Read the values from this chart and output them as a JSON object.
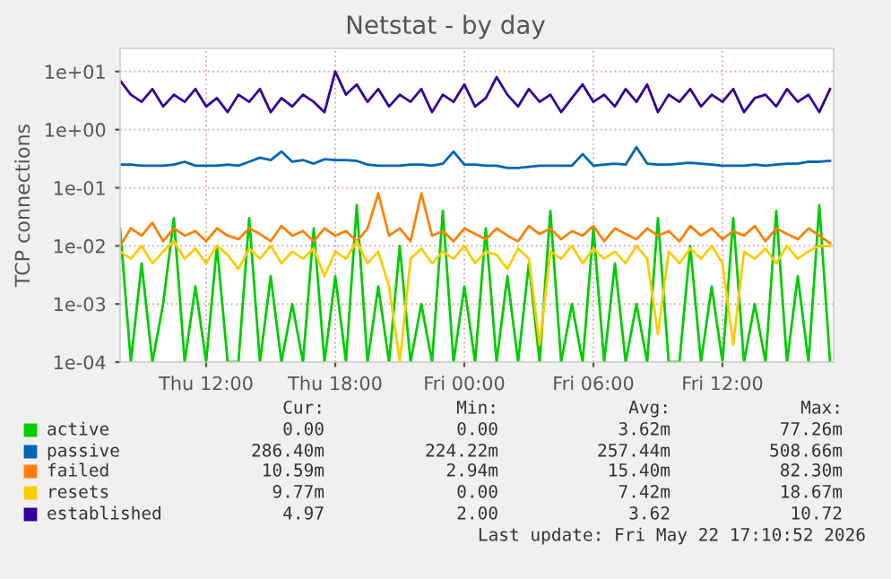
{
  "chart_data": {
    "type": "line",
    "title": "Netstat - by day",
    "ylabel": "TCP connections",
    "x": [
      "2026-05-21T08:00",
      "2026-05-21T08:30",
      "2026-05-21T09:00",
      "2026-05-21T09:30",
      "2026-05-21T10:00",
      "2026-05-21T10:30",
      "2026-05-21T11:00",
      "2026-05-21T11:30",
      "2026-05-21T12:00",
      "2026-05-21T12:30",
      "2026-05-21T13:00",
      "2026-05-21T13:30",
      "2026-05-21T14:00",
      "2026-05-21T14:30",
      "2026-05-21T15:00",
      "2026-05-21T15:30",
      "2026-05-21T16:00",
      "2026-05-21T16:30",
      "2026-05-21T17:00",
      "2026-05-21T17:30",
      "2026-05-21T18:00",
      "2026-05-21T18:30",
      "2026-05-21T19:00",
      "2026-05-21T19:30",
      "2026-05-21T20:00",
      "2026-05-21T20:30",
      "2026-05-21T21:00",
      "2026-05-21T21:30",
      "2026-05-21T22:00",
      "2026-05-21T22:30",
      "2026-05-21T23:00",
      "2026-05-21T23:30",
      "2026-05-22T00:00",
      "2026-05-22T00:30",
      "2026-05-22T01:00",
      "2026-05-22T01:30",
      "2026-05-22T02:00",
      "2026-05-22T02:30",
      "2026-05-22T03:00",
      "2026-05-22T03:30",
      "2026-05-22T04:00",
      "2026-05-22T04:30",
      "2026-05-22T05:00",
      "2026-05-22T05:30",
      "2026-05-22T06:00",
      "2026-05-22T06:30",
      "2026-05-22T07:00",
      "2026-05-22T07:30",
      "2026-05-22T08:00",
      "2026-05-22T08:30",
      "2026-05-22T09:00",
      "2026-05-22T09:30",
      "2026-05-22T10:00",
      "2026-05-22T10:30",
      "2026-05-22T11:00",
      "2026-05-22T11:30",
      "2026-05-22T12:00",
      "2026-05-22T12:30",
      "2026-05-22T13:00",
      "2026-05-22T13:30",
      "2026-05-22T14:00",
      "2026-05-22T14:30",
      "2026-05-22T15:00",
      "2026-05-22T15:30",
      "2026-05-22T16:00",
      "2026-05-22T16:30",
      "2026-05-22T17:00"
    ],
    "xlim": [
      "2026-05-21T08:00",
      "2026-05-22T17:10"
    ],
    "xticks": [
      {
        "value": "2026-05-21T12:00",
        "label": "Thu 12:00"
      },
      {
        "value": "2026-05-21T18:00",
        "label": "Thu 18:00"
      },
      {
        "value": "2026-05-22T00:00",
        "label": "Fri 00:00"
      },
      {
        "value": "2026-05-22T06:00",
        "label": "Fri 06:00"
      },
      {
        "value": "2026-05-22T12:00",
        "label": "Fri 12:00"
      }
    ],
    "log": "y",
    "ylim": [
      0.0001,
      25
    ],
    "yticks": [
      {
        "value": 0.0001,
        "label": "1e-04"
      },
      {
        "value": 0.001,
        "label": "1e-03"
      },
      {
        "value": 0.01,
        "label": "1e-02"
      },
      {
        "value": 0.1,
        "label": "1e-01"
      },
      {
        "value": 1,
        "label": "1e+00"
      },
      {
        "value": 10,
        "label": "1e+01"
      }
    ],
    "grid": true,
    "legend": "bottom",
    "series": [
      {
        "name": "active",
        "color": "#00cc00",
        "values": [
          0.02,
          0.0001,
          0.005,
          0.0001,
          0.001,
          0.03,
          0.0001,
          0.002,
          0.0001,
          0.01,
          0.0001,
          0.0001,
          0.03,
          0.0001,
          0.003,
          0.0001,
          0.001,
          0.0001,
          0.02,
          0.0001,
          0.003,
          0.0001,
          0.05,
          0.0001,
          0.002,
          0.0001,
          0.01,
          0.0001,
          0.001,
          0.0001,
          0.04,
          0.0001,
          0.002,
          0.0001,
          0.02,
          0.0001,
          0.003,
          0.0001,
          0.005,
          0.0001,
          0.04,
          0.0001,
          0.001,
          0.0001,
          0.02,
          0.0001,
          0.005,
          0.0001,
          0.001,
          0.0001,
          0.03,
          0.0001,
          0.0001,
          0.01,
          0.0001,
          0.002,
          0.0001,
          0.03,
          0.0001,
          0.001,
          0.0001,
          0.04,
          0.0001,
          0.003,
          0.0001,
          0.05,
          0.0001
        ]
      },
      {
        "name": "passive",
        "color": "#0066b3",
        "values": [
          0.25,
          0.25,
          0.24,
          0.24,
          0.24,
          0.25,
          0.28,
          0.24,
          0.24,
          0.24,
          0.25,
          0.24,
          0.28,
          0.33,
          0.3,
          0.42,
          0.28,
          0.3,
          0.26,
          0.31,
          0.3,
          0.3,
          0.29,
          0.25,
          0.24,
          0.24,
          0.24,
          0.25,
          0.25,
          0.24,
          0.26,
          0.42,
          0.25,
          0.25,
          0.24,
          0.24,
          0.22,
          0.22,
          0.23,
          0.24,
          0.24,
          0.24,
          0.24,
          0.38,
          0.24,
          0.25,
          0.26,
          0.25,
          0.5,
          0.26,
          0.25,
          0.25,
          0.26,
          0.27,
          0.26,
          0.25,
          0.24,
          0.24,
          0.24,
          0.25,
          0.24,
          0.25,
          0.26,
          0.26,
          0.28,
          0.28,
          0.29
        ]
      },
      {
        "name": "failed",
        "color": "#ff8000",
        "values": [
          0.01,
          0.02,
          0.015,
          0.025,
          0.012,
          0.02,
          0.015,
          0.018,
          0.012,
          0.02,
          0.015,
          0.013,
          0.02,
          0.016,
          0.012,
          0.022,
          0.015,
          0.018,
          0.012,
          0.02,
          0.015,
          0.018,
          0.012,
          0.02,
          0.08,
          0.015,
          0.02,
          0.012,
          0.08,
          0.015,
          0.018,
          0.012,
          0.02,
          0.016,
          0.013,
          0.02,
          0.015,
          0.012,
          0.022,
          0.016,
          0.02,
          0.013,
          0.018,
          0.015,
          0.022,
          0.012,
          0.02,
          0.016,
          0.013,
          0.02,
          0.015,
          0.018,
          0.012,
          0.022,
          0.015,
          0.02,
          0.013,
          0.018,
          0.015,
          0.022,
          0.012,
          0.02,
          0.016,
          0.013,
          0.02,
          0.015,
          0.011
        ]
      },
      {
        "name": "resets",
        "color": "#ffcc00",
        "values": [
          0.008,
          0.006,
          0.01,
          0.005,
          0.008,
          0.012,
          0.006,
          0.009,
          0.005,
          0.01,
          0.007,
          0.004,
          0.009,
          0.006,
          0.01,
          0.005,
          0.008,
          0.006,
          0.009,
          0.003,
          0.008,
          0.006,
          0.012,
          0.005,
          0.008,
          0.002,
          0.0001,
          0.006,
          0.009,
          0.005,
          0.008,
          0.006,
          0.01,
          0.005,
          0.008,
          0.007,
          0.004,
          0.009,
          0.006,
          0.0002,
          0.008,
          0.006,
          0.01,
          0.005,
          0.009,
          0.006,
          0.008,
          0.005,
          0.01,
          0.006,
          0.0003,
          0.008,
          0.005,
          0.009,
          0.006,
          0.01,
          0.005,
          0.0002,
          0.008,
          0.006,
          0.009,
          0.005,
          0.01,
          0.006,
          0.008,
          0.01,
          0.0098
        ]
      },
      {
        "name": "established",
        "color": "#330099",
        "values": [
          7,
          4,
          3,
          5,
          2.5,
          4,
          3,
          5,
          2.5,
          3.5,
          2,
          4,
          3,
          5,
          2,
          3.5,
          2.5,
          4,
          3,
          2,
          10,
          4,
          6,
          3,
          5,
          2.5,
          4,
          3,
          5,
          2,
          4,
          3,
          6,
          2.5,
          3.5,
          8,
          4,
          2.5,
          5,
          3,
          4,
          2,
          3.5,
          6,
          3,
          4,
          2.5,
          5,
          3,
          6,
          2,
          4,
          3,
          5,
          2.5,
          4,
          3,
          5,
          2,
          3.5,
          4,
          2.5,
          5,
          3,
          4,
          2,
          5
        ]
      }
    ],
    "annotations": [
      "Cur:",
      "Min:",
      "Avg:",
      "Max:",
      "0.00",
      "0.00",
      "3.62m",
      "77.26m",
      "286.40m",
      "224.22m",
      "257.44m",
      "508.66m",
      "10.59m",
      "2.94m",
      "15.40m",
      "82.30m",
      "9.77m",
      "0.00",
      "7.42m",
      "18.67m",
      "4.97",
      "2.00",
      "3.62",
      "10.72",
      "Last update: Fri May 22 17:10:52 2026"
    ]
  }
}
